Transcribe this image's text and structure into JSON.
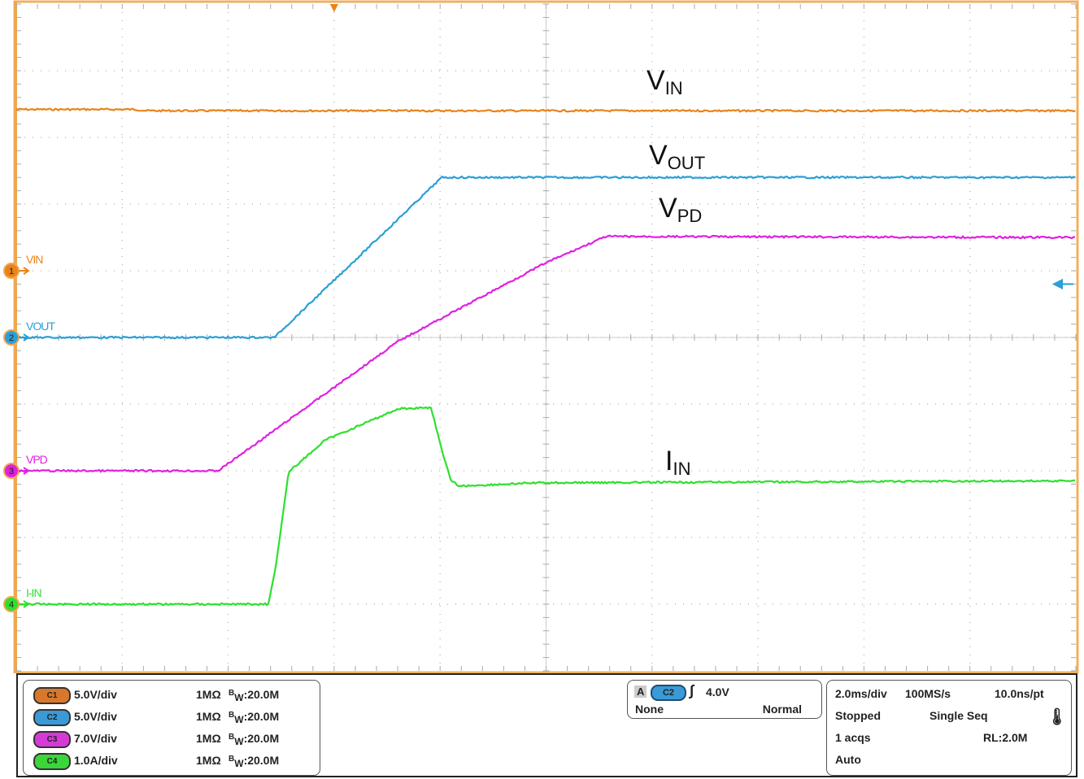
{
  "chart_data": {
    "type": "line",
    "grid": true,
    "time_unit": "ms",
    "xlim": [
      -6,
      14
    ],
    "divisions": {
      "horizontal": 10,
      "vertical": 10
    },
    "annotations": [
      {
        "main": "V",
        "sub": "IN",
        "series": "VIN"
      },
      {
        "main": "V",
        "sub": "OUT",
        "series": "VOUT"
      },
      {
        "main": "V",
        "sub": "PD",
        "series": "VPD"
      },
      {
        "main": "I",
        "sub": "IN",
        "series": "I-IN"
      }
    ],
    "series": [
      {
        "name": "VIN",
        "channel": "1",
        "color": "#e8841a",
        "scale_per_div": 5.0,
        "unit": "V",
        "position_div": 1.0,
        "t": [
          -6,
          -3.8,
          -3.5,
          14
        ],
        "values": [
          12.1,
          12.1,
          12.0,
          12.0
        ]
      },
      {
        "name": "VOUT",
        "channel": "2",
        "color": "#2a9fd8",
        "scale_per_div": 5.0,
        "unit": "V",
        "position_div": 0,
        "t": [
          -6,
          -1.13,
          2.03,
          14
        ],
        "values": [
          0,
          0,
          12.0,
          12.0
        ]
      },
      {
        "name": "VPD",
        "channel": "3",
        "color": "#e020e0",
        "scale_per_div": 7.0,
        "unit": "V",
        "position_div": -2.0,
        "t": [
          -6,
          -2.19,
          1.21,
          3.98,
          5.13,
          14
        ],
        "values": [
          0,
          0,
          13.6,
          21.8,
          24.6,
          24.5
        ]
      },
      {
        "name": "I-IN",
        "channel": "4",
        "color": "#2ee02e",
        "scale_per_div": 1.0,
        "unit": "A",
        "position_div": -4.0,
        "t": [
          -6,
          -1.24,
          -1.09,
          -0.86,
          -0.17,
          1.21,
          1.83,
          2.06,
          2.21,
          2.37,
          3.82,
          14
        ],
        "values": [
          0,
          0,
          0.63,
          1.98,
          2.46,
          2.93,
          2.95,
          2.22,
          1.85,
          1.77,
          1.82,
          1.85
        ]
      }
    ],
    "trigger_level_V": 4.0
  },
  "channels": [
    {
      "badge": "C1",
      "scale": "5.0V/div",
      "impedance": "1MΩ",
      "bw_prefix": "B",
      "bw_sub": "W",
      "bw": ":20.0M",
      "color": "#d9782a"
    },
    {
      "badge": "C2",
      "scale": "5.0V/div",
      "impedance": "1MΩ",
      "bw_prefix": "B",
      "bw_sub": "W",
      "bw": ":20.0M",
      "color": "#3a9ad6"
    },
    {
      "badge": "C3",
      "scale": "7.0V/div",
      "impedance": "1MΩ",
      "bw_prefix": "B",
      "bw_sub": "W",
      "bw": ":20.0M",
      "color": "#d63ad6"
    },
    {
      "badge": "C4",
      "scale": "1.0A/div",
      "impedance": "1MΩ",
      "bw_prefix": "B",
      "bw_sub": "W",
      "bw": ":20.0M",
      "color": "#3ad63a"
    }
  ],
  "trigger": {
    "label": "A",
    "source": "C2",
    "level": "4.0V",
    "coupling": "None",
    "mode": "Normal"
  },
  "timebase": {
    "scale": "2.0ms/div",
    "rate": "100MS/s",
    "resolution": "10.0ns/pt",
    "state": "Stopped",
    "acq_mode": "Single Seq",
    "acqs": "1 acqs",
    "record_length": "RL:2.0M",
    "auto": "Auto"
  }
}
